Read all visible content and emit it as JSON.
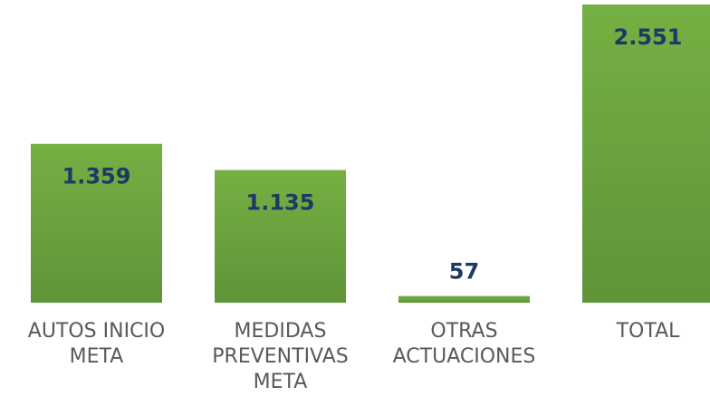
{
  "chart_data": {
    "type": "bar",
    "categories": [
      "AUTOS INICIO META",
      "MEDIDAS PREVENTIVAS META",
      "OTRAS ACTUACIONES",
      "TOTAL"
    ],
    "values": [
      1359,
      1135,
      57,
      2551
    ],
    "value_labels": [
      "1.359",
      "1.135",
      "57",
      "2.551"
    ],
    "color": "#70ad47"
  }
}
